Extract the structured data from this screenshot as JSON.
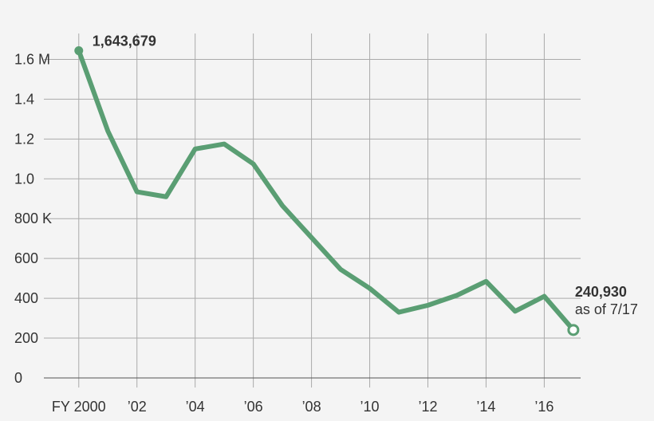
{
  "chart_data": {
    "type": "line",
    "x": [
      2000,
      2001,
      2002,
      2003,
      2004,
      2005,
      2006,
      2007,
      2008,
      2009,
      2010,
      2011,
      2012,
      2013,
      2014,
      2015,
      2016,
      2017
    ],
    "values": [
      1643679,
      1240000,
      935000,
      910000,
      1150000,
      1175000,
      1075000,
      865000,
      705000,
      545000,
      450000,
      330000,
      365000,
      415000,
      485000,
      335000,
      410000,
      240930
    ],
    "value_labels": [
      "1,643,679",
      null,
      null,
      null,
      null,
      null,
      null,
      null,
      null,
      null,
      null,
      null,
      null,
      null,
      null,
      null,
      null,
      "240,930"
    ],
    "annotation": "as of 7/17",
    "color": "#5a9e73",
    "xlim": [
      1998.8,
      2017.25
    ],
    "xticks": [
      {
        "value": 2000,
        "label": "FY 2000"
      },
      {
        "value": 2002,
        "label": "’02"
      },
      {
        "value": 2004,
        "label": "’04"
      },
      {
        "value": 2006,
        "label": "’06"
      },
      {
        "value": 2008,
        "label": "’08"
      },
      {
        "value": 2010,
        "label": "’10"
      },
      {
        "value": 2012,
        "label": "’12"
      },
      {
        "value": 2014,
        "label": "’14"
      },
      {
        "value": 2016,
        "label": "’16"
      }
    ],
    "ylim": [
      0,
      1730000
    ],
    "yticks": [
      0,
      {
        "value": 200000,
        "label": "200"
      },
      {
        "value": 400000,
        "label": "400"
      },
      {
        "value": 600000,
        "label": "600"
      },
      {
        "value": 800000,
        "label": "800 K"
      },
      {
        "value": 1000000,
        "label": "1.0"
      },
      {
        "value": 1200000,
        "label": "1.2"
      },
      {
        "value": 1400000,
        "label": "1.4"
      },
      {
        "value": 1600000,
        "label": "1.6 M"
      }
    ],
    "grid": true
  }
}
